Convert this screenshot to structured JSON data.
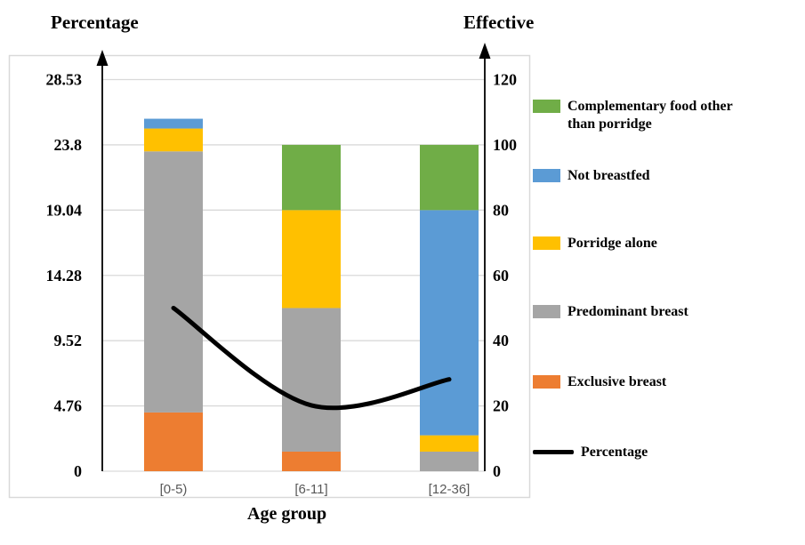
{
  "axes": {
    "left_title": "Percentage",
    "right_title": "Effective",
    "x_title": "Age group"
  },
  "chart_data": {
    "type": "combo-stacked-bar-line",
    "categories": [
      "[0-5)",
      "[6-11]",
      "[12-36]"
    ],
    "bar_series": [
      {
        "name": "Exclusive breast",
        "color": "#ED7D31",
        "values": [
          18,
          6,
          0
        ]
      },
      {
        "name": "Predominant breast",
        "color": "#A5A5A5",
        "values": [
          80,
          44,
          6
        ]
      },
      {
        "name": "Porridge alone",
        "color": "#FFC000",
        "values": [
          7,
          30,
          5
        ]
      },
      {
        "name": "Not breastfed",
        "color": "#5B9BD5",
        "values": [
          3,
          0,
          69
        ]
      },
      {
        "name": "Complementary food other than porridge",
        "color": "#70AD47",
        "values": [
          0,
          20,
          20
        ]
      }
    ],
    "line_series": {
      "name": "Percentage",
      "color": "#000000",
      "axis": "left",
      "values": [
        11.9,
        4.8,
        6.7
      ]
    },
    "left_axis": {
      "title": "Percentage",
      "ticks": [
        "0",
        "4.76",
        "9.52",
        "14.28",
        "19.04",
        "23.8",
        "28.53"
      ]
    },
    "right_axis": {
      "title": "Effective",
      "ticks": [
        "0",
        "20",
        "40",
        "60",
        "80",
        "100",
        "120"
      ],
      "max": 120
    },
    "x_axis": {
      "title": "Age group"
    },
    "grid": true,
    "legend_position": "right",
    "colors": {
      "grid": "#d9d9d9",
      "axis": "#000000",
      "category_label": "#595959"
    }
  },
  "legend": {
    "items": [
      {
        "label": "Complementary food other than porridge",
        "color": "#70AD47",
        "type": "box"
      },
      {
        "label": "Not breastfed",
        "color": "#5B9BD5",
        "type": "box"
      },
      {
        "label": "Porridge alone",
        "color": "#FFC000",
        "type": "box"
      },
      {
        "label": "Predominant breast",
        "color": "#A5A5A5",
        "type": "box"
      },
      {
        "label": "Exclusive breast",
        "color": "#ED7D31",
        "type": "box"
      },
      {
        "label": "Percentage",
        "color": "#000000",
        "type": "line"
      }
    ]
  }
}
